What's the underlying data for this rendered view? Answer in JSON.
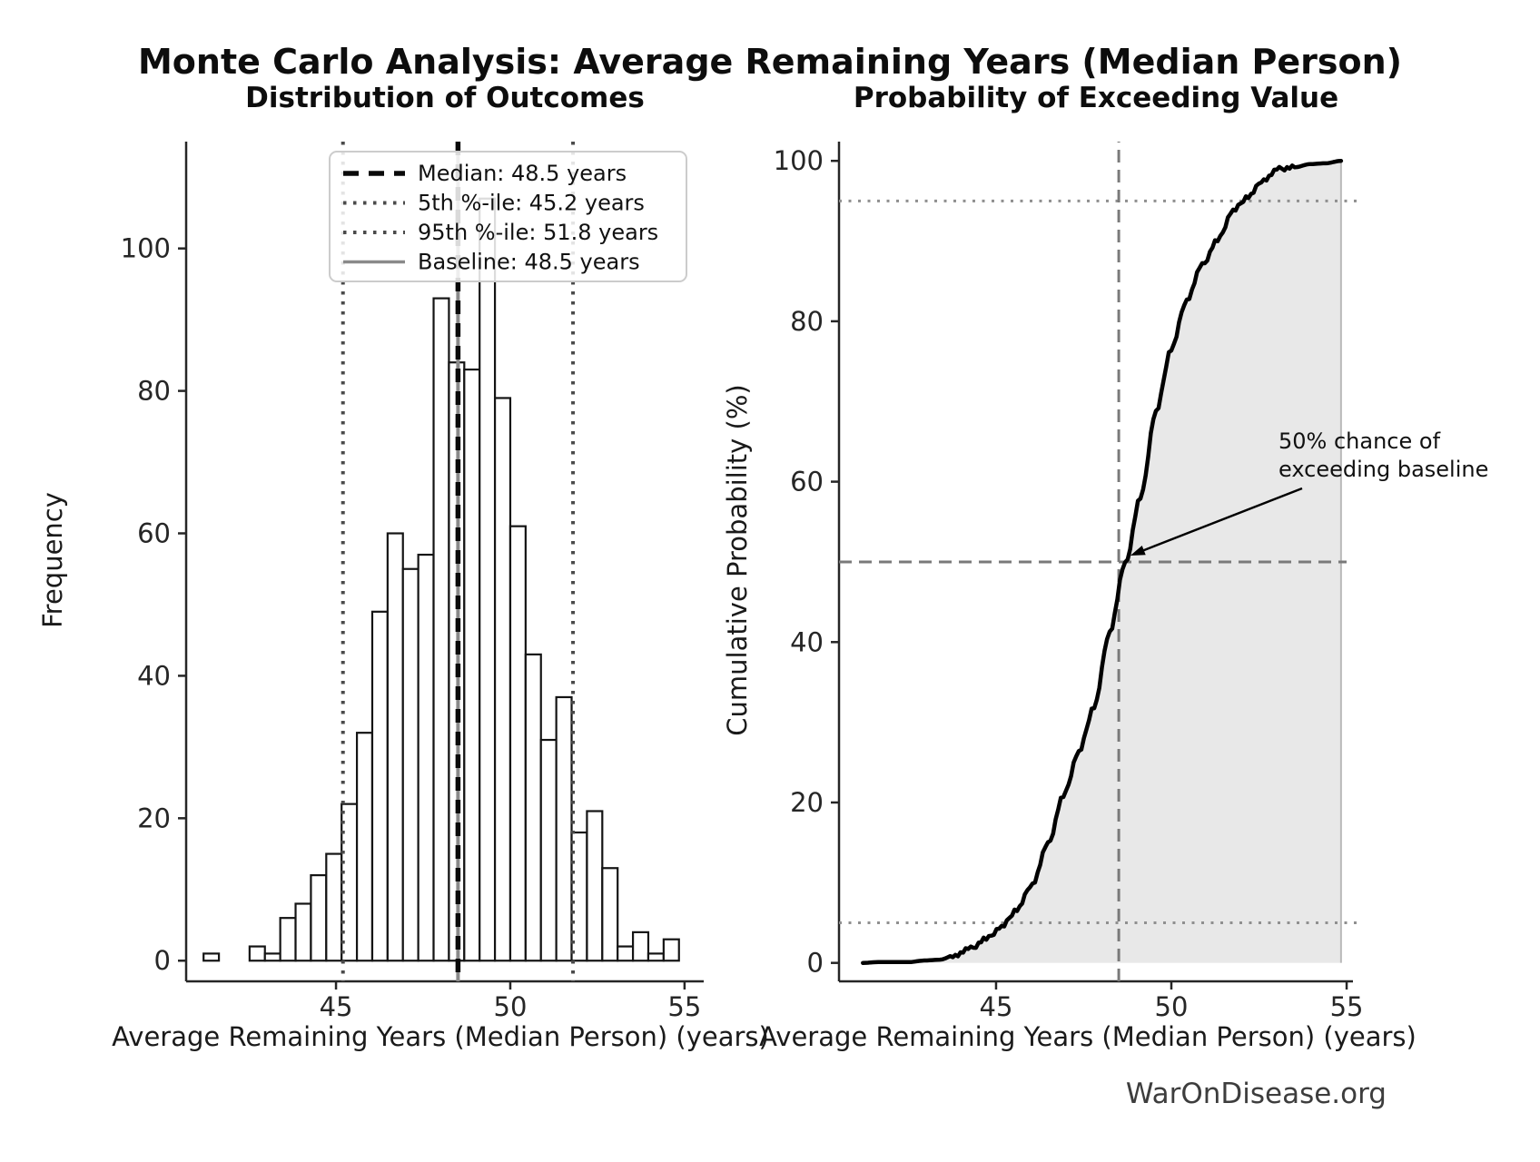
{
  "header": {
    "title": "Monte Carlo Analysis: Average Remaining Years (Median Person)",
    "watermark": "WarOnDisease.org"
  },
  "left_plot": {
    "title": "Distribution of Outcomes",
    "xlabel": "Average Remaining Years (Median Person) (years)",
    "ylabel": "Frequency",
    "legend": [
      {
        "label": "Median: 48.5 years",
        "style": "dashed-black"
      },
      {
        "label": "5th %-ile: 45.2 years",
        "style": "dotted-gray"
      },
      {
        "label": "95th %-ile: 51.8 years",
        "style": "dotted-gray"
      },
      {
        "label": "Baseline: 48.5 years",
        "style": "solid-gray"
      }
    ]
  },
  "right_plot": {
    "title": "Probability of Exceeding Value",
    "xlabel": "Average Remaining Years (Median Person) (years)",
    "ylabel": "Cumulative Probability (%)",
    "annotation_line1": "50% chance of",
    "annotation_line2": "exceeding baseline"
  },
  "colors": {
    "bar_edge": "#141414",
    "bar_fill": "#ffffff",
    "median_line": "#0a0a0a",
    "percentile_line": "#4a4a4a",
    "baseline_line": "#8a8a8a",
    "cdf_line": "#000000",
    "cdf_fill": "#e8e8e8",
    "dashed_guide": "#7a7a7a",
    "dotted_guide": "#8f8f8f",
    "spine": "#262626",
    "legend_border": "#cccccc"
  },
  "chart_data": [
    {
      "type": "bar",
      "subtype": "histogram",
      "title": "Distribution of Outcomes",
      "xlabel": "Average Remaining Years (Median Person) (years)",
      "ylabel": "Frequency",
      "n_samples": 1000,
      "bin_start": 41.2,
      "bin_width": 0.44,
      "counts": [
        1,
        0,
        0,
        2,
        1,
        6,
        8,
        12,
        15,
        22,
        32,
        49,
        60,
        55,
        57,
        93,
        84,
        83,
        107,
        79,
        61,
        43,
        31,
        37,
        18,
        21,
        13,
        2,
        4,
        1,
        3
      ],
      "xticks": [
        45,
        50,
        55
      ],
      "yticks": [
        0,
        20,
        40,
        60,
        80,
        100
      ],
      "xlim": [
        40.7,
        55.55
      ],
      "ylim": [
        -2.9,
        115
      ],
      "markers": {
        "median": 48.5,
        "p5": 45.2,
        "p95": 51.8,
        "baseline": 48.5
      },
      "legend_entries": [
        "Median: 48.5 years",
        "5th %-ile: 45.2 years",
        "95th %-ile: 51.8 years",
        "Baseline: 48.5 years"
      ],
      "legend_position": "upper center",
      "grid": false
    },
    {
      "type": "line",
      "subtype": "empirical-cdf",
      "title": "Probability of Exceeding Value",
      "xlabel": "Average Remaining Years (Median Person) (years)",
      "ylabel": "Cumulative Probability (%)",
      "x": [
        41.2,
        41.64,
        42.08,
        42.52,
        42.96,
        43.4,
        43.84,
        44.28,
        44.72,
        45.16,
        45.6,
        46.04,
        46.48,
        46.92,
        47.36,
        47.8,
        48.24,
        48.68,
        49.12,
        49.56,
        50.0,
        50.44,
        50.88,
        51.32,
        51.76,
        52.2,
        52.64,
        53.08,
        53.52,
        53.96,
        54.4,
        54.84
      ],
      "y": [
        0.0,
        0.1,
        0.1,
        0.1,
        0.3,
        0.4,
        1.0,
        1.8,
        3.0,
        4.5,
        6.7,
        9.9,
        14.8,
        20.8,
        26.3,
        32.0,
        41.3,
        49.7,
        58.0,
        68.7,
        76.6,
        82.7,
        87.0,
        90.1,
        93.8,
        95.6,
        97.7,
        99.0,
        99.2,
        99.6,
        99.7,
        100.0
      ],
      "fill": "under-curve",
      "xticks": [
        45,
        50,
        55
      ],
      "yticks": [
        0,
        20,
        40,
        60,
        80,
        100
      ],
      "xlim": [
        40.52,
        55.18
      ],
      "ylim": [
        -2.3,
        102.4
      ],
      "markers": {
        "vline_baseline": 48.5,
        "hline_dashed": 50,
        "hline_dotted_low": 5,
        "hline_dotted_high": 95
      },
      "annotation": {
        "text": "50% chance of exceeding baseline",
        "arrow_to": [
          48.7,
          50
        ]
      },
      "grid": false
    }
  ]
}
